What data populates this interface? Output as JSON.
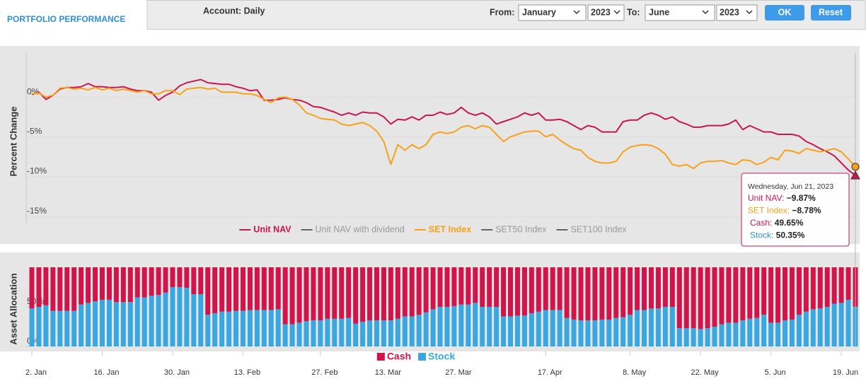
{
  "header": {
    "tab": "PORTFOLIO PERFORMANCE",
    "account": "Account: Daily",
    "from_label": "From:",
    "from_month": "January",
    "from_year": "2023",
    "to_label": "To:",
    "to_month": "June",
    "to_year": "2023",
    "ok": "OK",
    "reset": "Reset"
  },
  "chart_data": [
    {
      "type": "line",
      "y_label": "Percent Change",
      "ylim": [
        -16,
        5
      ],
      "yticks": [
        {
          "value": 0,
          "label": "0%"
        },
        {
          "value": -5,
          "label": "-5%"
        },
        {
          "value": -10,
          "label": "-10%"
        },
        {
          "value": -15,
          "label": "-15%"
        }
      ],
      "grid": true,
      "series": [
        {
          "name": "Unit NAV",
          "color": "#c8174e",
          "visible": true,
          "marker": "triangle",
          "values": [
            0.3,
            0.6,
            -0.3,
            0.2,
            1.0,
            1.2,
            1.2,
            1.3,
            1.7,
            1.3,
            1.3,
            1.2,
            1.2,
            1.3,
            1.0,
            0.8,
            0.8,
            0.6,
            -0.4,
            0.2,
            0.6,
            1.4,
            1.8,
            2.0,
            2.2,
            1.8,
            1.7,
            1.6,
            1.6,
            1.3,
            1.1,
            0.8,
            0.9,
            -0.4,
            -0.4,
            -0.3,
            -0.1,
            -0.3,
            -0.4,
            -0.7,
            -1.2,
            -1.3,
            -1.6,
            -1.9,
            -2.3,
            -2.0,
            -2.3,
            -1.9,
            -2.0,
            -2.0,
            -2.5,
            -3.4,
            -2.8,
            -2.9,
            -2.5,
            -2.9,
            -2.3,
            -2.3,
            -1.9,
            -2.2,
            -2.0,
            -1.3,
            -2.0,
            -2.3,
            -2.0,
            -2.5,
            -3.4,
            -3.1,
            -2.8,
            -2.5,
            -2.0,
            -2.3,
            -2.0,
            -2.9,
            -2.9,
            -2.8,
            -3.1,
            -3.6,
            -4.1,
            -3.6,
            -3.8,
            -4.4,
            -4.4,
            -4.4,
            -3.1,
            -2.9,
            -2.9,
            -2.3,
            -2.0,
            -2.3,
            -2.8,
            -2.5,
            -3.1,
            -3.4,
            -3.8,
            -3.8,
            -3.6,
            -3.6,
            -3.6,
            -3.4,
            -2.9,
            -4.1,
            -3.6,
            -4.0,
            -4.4,
            -4.4,
            -4.7,
            -4.7,
            -4.7,
            -4.9,
            -5.6,
            -6.0,
            -6.5,
            -6.9,
            -7.4,
            -8.3,
            -9.2,
            -9.87
          ]
        },
        {
          "name": "Unit NAV with dividend",
          "color": "#666666",
          "visible": false
        },
        {
          "name": "SET Index",
          "color": "#f7a11a",
          "visible": true,
          "marker": "circle",
          "values": [
            0.4,
            0.5,
            0.0,
            0.2,
            1.1,
            1.2,
            1.0,
            1.1,
            0.9,
            1.2,
            0.9,
            1.1,
            0.8,
            1.0,
            0.8,
            0.6,
            0.8,
            0.4,
            0.4,
            0.8,
            0.8,
            0.3,
            1.0,
            1.1,
            1.2,
            1.0,
            1.1,
            0.6,
            0.6,
            0.6,
            0.4,
            0.4,
            0.2,
            -0.3,
            -0.7,
            -0.1,
            0.0,
            -0.3,
            -1.0,
            -2.0,
            -2.3,
            -2.7,
            -2.8,
            -2.9,
            -3.4,
            -3.6,
            -3.4,
            -3.2,
            -3.6,
            -4.3,
            -5.6,
            -8.5,
            -6.0,
            -6.7,
            -6.0,
            -6.5,
            -6.0,
            -4.7,
            -4.4,
            -4.6,
            -4.4,
            -3.8,
            -3.6,
            -4.0,
            -3.6,
            -3.8,
            -4.7,
            -5.6,
            -5.0,
            -4.7,
            -4.4,
            -4.3,
            -4.3,
            -5.0,
            -4.7,
            -5.4,
            -6.0,
            -6.5,
            -6.7,
            -7.6,
            -8.1,
            -8.3,
            -8.3,
            -8.1,
            -6.9,
            -6.3,
            -6.1,
            -6.0,
            -6.1,
            -6.5,
            -7.2,
            -8.5,
            -8.7,
            -8.5,
            -9.0,
            -8.3,
            -8.1,
            -8.1,
            -8.0,
            -8.3,
            -8.5,
            -7.9,
            -8.0,
            -8.5,
            -8.2,
            -7.6,
            -7.9,
            -6.7,
            -6.8,
            -7.1,
            -6.5,
            -6.7,
            -6.9,
            -6.7,
            -6.5,
            -6.9,
            -7.8,
            -8.78
          ]
        },
        {
          "name": "SET50 Index",
          "color": "#666666",
          "visible": false
        },
        {
          "name": "SET100 Index",
          "color": "#666666",
          "visible": false
        }
      ],
      "tooltip": {
        "title": "Wednesday, Jun 21, 2023",
        "rows": [
          {
            "label": "Unit NAV:",
            "value": "−9.87%",
            "color": "#c8174e"
          },
          {
            "label": "SET Index:",
            "value": "−8.78%",
            "color": "#f7a11a"
          },
          {
            "label": "Cash:",
            "value": "49.65%",
            "color": "#c8174e"
          },
          {
            "label": "Stock:",
            "value": "50.35%",
            "color": "#2f95d0"
          }
        ]
      }
    },
    {
      "type": "bar",
      "stacked": true,
      "y_label": "Asset Allocation",
      "ylim": [
        0,
        100
      ],
      "yticks": [
        {
          "value": 0,
          "label": "0%"
        },
        {
          "value": 50,
          "label": "50%"
        }
      ],
      "categories": [
        "2. Jan",
        null,
        null,
        null,
        null,
        null,
        null,
        null,
        null,
        null,
        "16. Jan",
        null,
        null,
        null,
        null,
        null,
        null,
        null,
        null,
        null,
        "30. Jan",
        null,
        null,
        null,
        null,
        null,
        null,
        null,
        null,
        null,
        "13. Feb",
        null,
        null,
        null,
        null,
        null,
        null,
        null,
        null,
        null,
        null,
        "27. Feb",
        null,
        null,
        null,
        null,
        null,
        null,
        null,
        null,
        "13. Mar",
        null,
        null,
        null,
        null,
        null,
        null,
        null,
        null,
        null,
        "27. Mar",
        null,
        null,
        null,
        null,
        null,
        null,
        null,
        null,
        null,
        null,
        null,
        null,
        "17. Apr",
        null,
        null,
        null,
        null,
        null,
        null,
        null,
        null,
        null,
        null,
        null,
        "8. May",
        null,
        null,
        null,
        null,
        null,
        null,
        null,
        null,
        null,
        "22. May",
        null,
        null,
        null,
        null,
        null,
        null,
        null,
        null,
        null,
        "5. Jun",
        null,
        null,
        null,
        null,
        null,
        null,
        null,
        null,
        null,
        "19. Jun",
        null,
        null
      ],
      "series": [
        {
          "name": "Cash",
          "color": "#d1144a",
          "values": [
            52,
            50,
            48,
            55,
            55,
            55,
            55,
            47,
            45,
            43,
            41,
            41,
            44,
            44,
            44,
            38,
            38,
            36,
            35,
            32,
            25,
            25,
            26,
            34,
            34,
            60,
            58,
            56,
            56,
            55,
            55,
            54,
            54,
            54,
            54,
            53,
            72,
            72,
            70,
            68,
            67,
            67,
            65,
            65,
            65,
            64,
            71,
            69,
            67,
            67,
            67,
            67,
            65,
            62,
            62,
            60,
            57,
            53,
            50,
            50,
            49,
            47,
            47,
            45,
            50,
            50,
            50,
            62,
            62,
            61,
            61,
            58,
            56,
            54,
            54,
            54,
            64,
            66,
            67,
            67,
            67,
            66,
            66,
            64,
            63,
            60,
            54,
            54,
            52,
            52,
            50,
            50,
            77,
            77,
            77,
            78,
            77,
            75,
            72,
            70,
            70,
            67,
            65,
            64,
            60,
            70,
            70,
            67,
            66,
            60,
            56,
            53,
            52,
            50,
            46,
            45,
            41,
            49.65
          ]
        },
        {
          "name": "Stock",
          "color": "#3aa8e0",
          "values": [
            48,
            50,
            52,
            45,
            45,
            45,
            45,
            53,
            55,
            57,
            59,
            59,
            56,
            56,
            56,
            62,
            62,
            64,
            65,
            68,
            75,
            75,
            74,
            66,
            66,
            40,
            42,
            44,
            44,
            45,
            45,
            46,
            46,
            46,
            46,
            47,
            28,
            28,
            30,
            32,
            33,
            33,
            35,
            35,
            35,
            36,
            29,
            31,
            33,
            33,
            33,
            33,
            35,
            38,
            38,
            40,
            43,
            47,
            50,
            50,
            51,
            53,
            53,
            55,
            50,
            50,
            50,
            38,
            38,
            39,
            39,
            42,
            44,
            46,
            46,
            46,
            36,
            34,
            33,
            33,
            33,
            34,
            34,
            36,
            37,
            40,
            46,
            46,
            48,
            48,
            50,
            50,
            23,
            23,
            23,
            22,
            23,
            25,
            28,
            30,
            30,
            33,
            35,
            36,
            40,
            30,
            30,
            33,
            34,
            40,
            44,
            47,
            48,
            50,
            54,
            55,
            59,
            50.35
          ]
        }
      ]
    }
  ]
}
